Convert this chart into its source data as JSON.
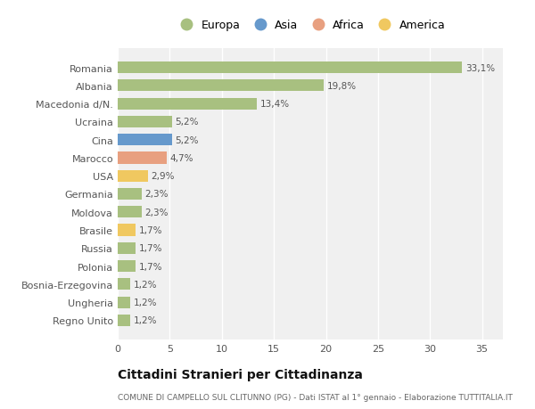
{
  "countries": [
    "Romania",
    "Albania",
    "Macedonia d/N.",
    "Ucraina",
    "Cina",
    "Marocco",
    "USA",
    "Germania",
    "Moldova",
    "Brasile",
    "Russia",
    "Polonia",
    "Bosnia-Erzegovina",
    "Ungheria",
    "Regno Unito"
  ],
  "values": [
    33.1,
    19.8,
    13.4,
    5.2,
    5.2,
    4.7,
    2.9,
    2.3,
    2.3,
    1.7,
    1.7,
    1.7,
    1.2,
    1.2,
    1.2
  ],
  "labels": [
    "33,1%",
    "19,8%",
    "13,4%",
    "5,2%",
    "5,2%",
    "4,7%",
    "2,9%",
    "2,3%",
    "2,3%",
    "1,7%",
    "1,7%",
    "1,7%",
    "1,2%",
    "1,2%",
    "1,2%"
  ],
  "continents": [
    "Europa",
    "Europa",
    "Europa",
    "Europa",
    "Asia",
    "Africa",
    "America",
    "Europa",
    "Europa",
    "America",
    "Europa",
    "Europa",
    "Europa",
    "Europa",
    "Europa"
  ],
  "colors": {
    "Europa": "#a8c080",
    "Asia": "#6699cc",
    "Africa": "#e8a080",
    "America": "#f0c860"
  },
  "legend_order": [
    "Europa",
    "Asia",
    "Africa",
    "America"
  ],
  "background_color": "#ffffff",
  "plot_background": "#f0f0f0",
  "grid_color": "#ffffff",
  "title": "Cittadini Stranieri per Cittadinanza",
  "subtitle": "COMUNE DI CAMPELLO SUL CLITUNNO (PG) - Dati ISTAT al 1° gennaio - Elaborazione TUTTITALIA.IT",
  "xlim": [
    0,
    37
  ],
  "xticks": [
    0,
    5,
    10,
    15,
    20,
    25,
    30,
    35
  ]
}
